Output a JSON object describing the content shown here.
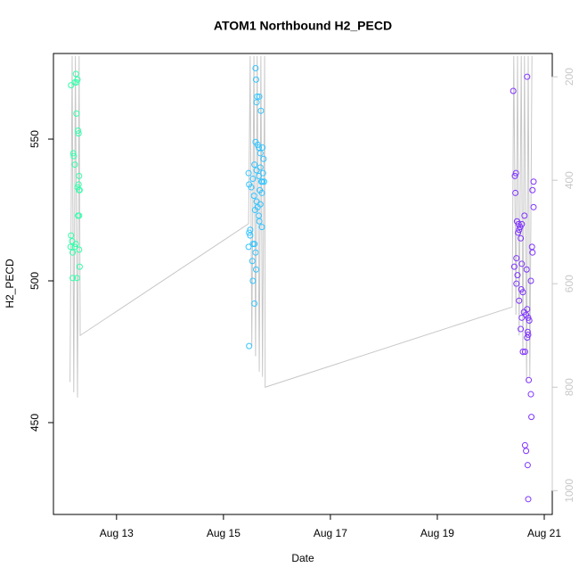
{
  "chart_data": {
    "type": "scatter",
    "title": "ATOM1 Northbound H2_PECD",
    "x_label": "Date",
    "y_label": "H2_PECD",
    "xlim": [
      11.82,
      21.15
    ],
    "xticks": [
      {
        "value": 13,
        "label": "Aug 13"
      },
      {
        "value": 15,
        "label": "Aug 15"
      },
      {
        "value": 17,
        "label": "Aug 17"
      },
      {
        "value": 19,
        "label": "Aug 19"
      },
      {
        "value": 21,
        "label": "Aug 21"
      }
    ],
    "ylim": [
      417.6,
      580.2
    ],
    "yticks": [
      450,
      500,
      550
    ],
    "y2lim": [
      1046,
      155
    ],
    "y2ticks": [
      200,
      400,
      600,
      800,
      1000
    ],
    "y2_color": "#c8c8c8",
    "series": [
      {
        "kind": "line",
        "axis": "y2",
        "color": "#c8c8c8",
        "x": [
          12.13,
          12.17,
          12.2,
          12.23,
          12.27,
          12.3,
          12.32,
          15.47,
          15.5,
          15.53,
          15.57,
          15.6,
          15.63,
          15.67,
          15.7,
          15.73,
          15.77,
          15.78,
          20.4,
          20.43,
          20.47,
          20.5,
          20.53,
          20.57,
          20.6,
          20.63,
          20.67,
          20.7,
          20.73,
          20.77
        ],
        "values": [
          790,
          160,
          810,
          160,
          820,
          160,
          700,
          484,
          160,
          720,
          160,
          740,
          160,
          770,
          160,
          780,
          160,
          800,
          645,
          160,
          660,
          160,
          700,
          160,
          740,
          160,
          790,
          160,
          780,
          160
        ]
      },
      {
        "kind": "points",
        "color": "#33ffaa",
        "x": [
          12.15,
          12.22,
          12.25,
          12.27,
          12.24,
          12.25,
          12.29,
          12.28,
          12.19,
          12.2,
          12.22,
          12.3,
          12.29,
          12.27,
          12.31,
          12.3,
          12.3,
          12.28,
          12.15,
          12.17,
          12.24,
          12.22,
          12.14,
          12.3,
          12.18,
          12.31,
          12.18,
          12.26
        ],
        "values": [
          569,
          570,
          570,
          571,
          573,
          559,
          552,
          553,
          545,
          544,
          541,
          537,
          534,
          533,
          532,
          532,
          523,
          523,
          516,
          514,
          513,
          512,
          512,
          511,
          510,
          505,
          501,
          501
        ]
      },
      {
        "kind": "points",
        "color": "#33c4ff",
        "x": [
          15.6,
          15.61,
          15.63,
          15.67,
          15.62,
          15.7,
          15.6,
          15.64,
          15.73,
          15.66,
          15.69,
          15.75,
          15.58,
          15.69,
          15.62,
          15.47,
          15.74,
          15.66,
          15.55,
          15.71,
          15.73,
          15.76,
          15.48,
          15.52,
          15.68,
          15.72,
          15.57,
          15.62,
          15.69,
          15.64,
          15.59,
          15.66,
          15.67,
          15.72,
          15.5,
          15.48,
          15.5,
          15.55,
          15.58,
          15.47,
          15.6,
          15.54,
          15.61,
          15.55,
          15.58,
          15.48
        ],
        "values": [
          575,
          571,
          565,
          565,
          563,
          560,
          549,
          548,
          547,
          547,
          545,
          543,
          541,
          540,
          539,
          538,
          538,
          537,
          536,
          535,
          535,
          535,
          534,
          533,
          532,
          531,
          530,
          528,
          527,
          526,
          525,
          523,
          521,
          519,
          518,
          517,
          516,
          513,
          513,
          512,
          510,
          507,
          504,
          500,
          492,
          477
        ]
      },
      {
        "kind": "points",
        "color": "#7f33ff",
        "x": [
          20.68,
          20.42,
          20.47,
          20.45,
          20.8,
          20.78,
          20.46,
          20.8,
          20.63,
          20.49,
          20.52,
          20.58,
          20.55,
          20.53,
          20.51,
          20.56,
          20.77,
          20.78,
          20.48,
          20.58,
          20.44,
          20.67,
          20.5,
          20.75,
          20.48,
          20.57,
          20.6,
          20.53,
          20.68,
          20.62,
          20.66,
          20.58,
          20.7,
          20.72,
          20.56,
          20.69,
          20.7,
          20.68,
          20.6,
          20.64,
          20.71,
          20.75,
          20.76,
          20.64,
          20.66,
          20.69,
          20.7
        ],
        "values": [
          572,
          567,
          538,
          537,
          535,
          532,
          531,
          526,
          523,
          521,
          520,
          520,
          519,
          518,
          517,
          515,
          512,
          510,
          508,
          506,
          505,
          504,
          502,
          500,
          499,
          497,
          496,
          493,
          490,
          489,
          488,
          487,
          487,
          486,
          483,
          482,
          481,
          480,
          475,
          475,
          465,
          460,
          452,
          442,
          440,
          435,
          423
        ]
      }
    ]
  }
}
